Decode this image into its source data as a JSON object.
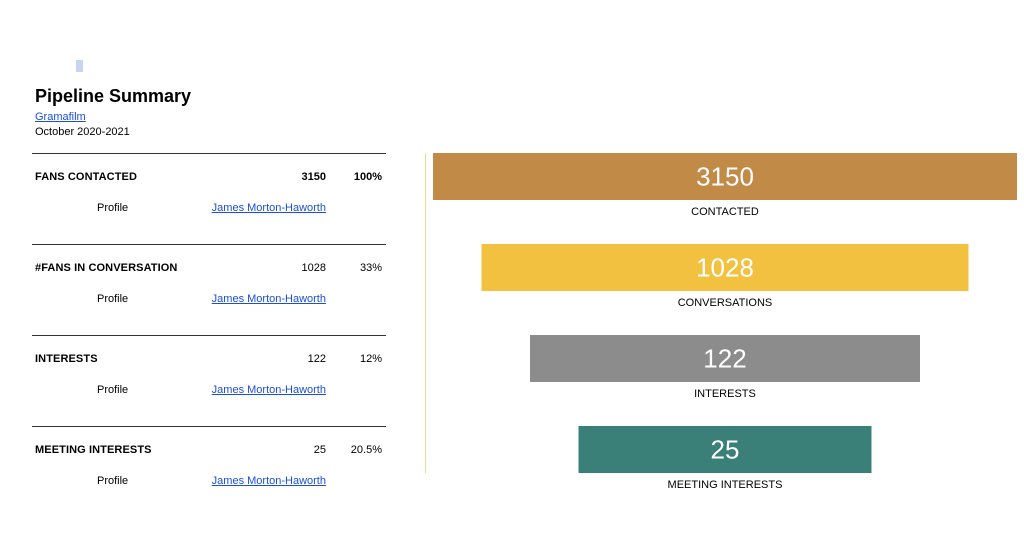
{
  "header": {
    "title": "Pipeline Summary",
    "organization": "Gramafilm",
    "period": "October 2020-2021"
  },
  "summary": {
    "profile_label": "Profile",
    "rows": [
      {
        "label": "FANS CONTACTED",
        "count": "3150",
        "percent": "100%",
        "owner": "James Morton-Haworth"
      },
      {
        "label": "#FANS IN CONVERSATION",
        "count": "1028",
        "percent": "33%",
        "owner": "James Morton-Haworth"
      },
      {
        "label": "INTERESTS",
        "count": "122",
        "percent": "12%",
        "owner": "James Morton-Haworth"
      },
      {
        "label": "MEETING INTERESTS",
        "count": "25",
        "percent": "20.5%",
        "owner": "James Morton-Haworth"
      }
    ]
  },
  "chart_data": {
    "type": "bar",
    "categories": [
      "CONTACTED",
      "CONVERSATIONS",
      "INTERESTS",
      "MEETING INTERESTS"
    ],
    "values": [
      3150,
      1028,
      122,
      25
    ],
    "colors": [
      "#c28a47",
      "#f2c140",
      "#8c8c8c",
      "#3a8079"
    ],
    "title": "",
    "xlabel": "",
    "ylabel": ""
  }
}
